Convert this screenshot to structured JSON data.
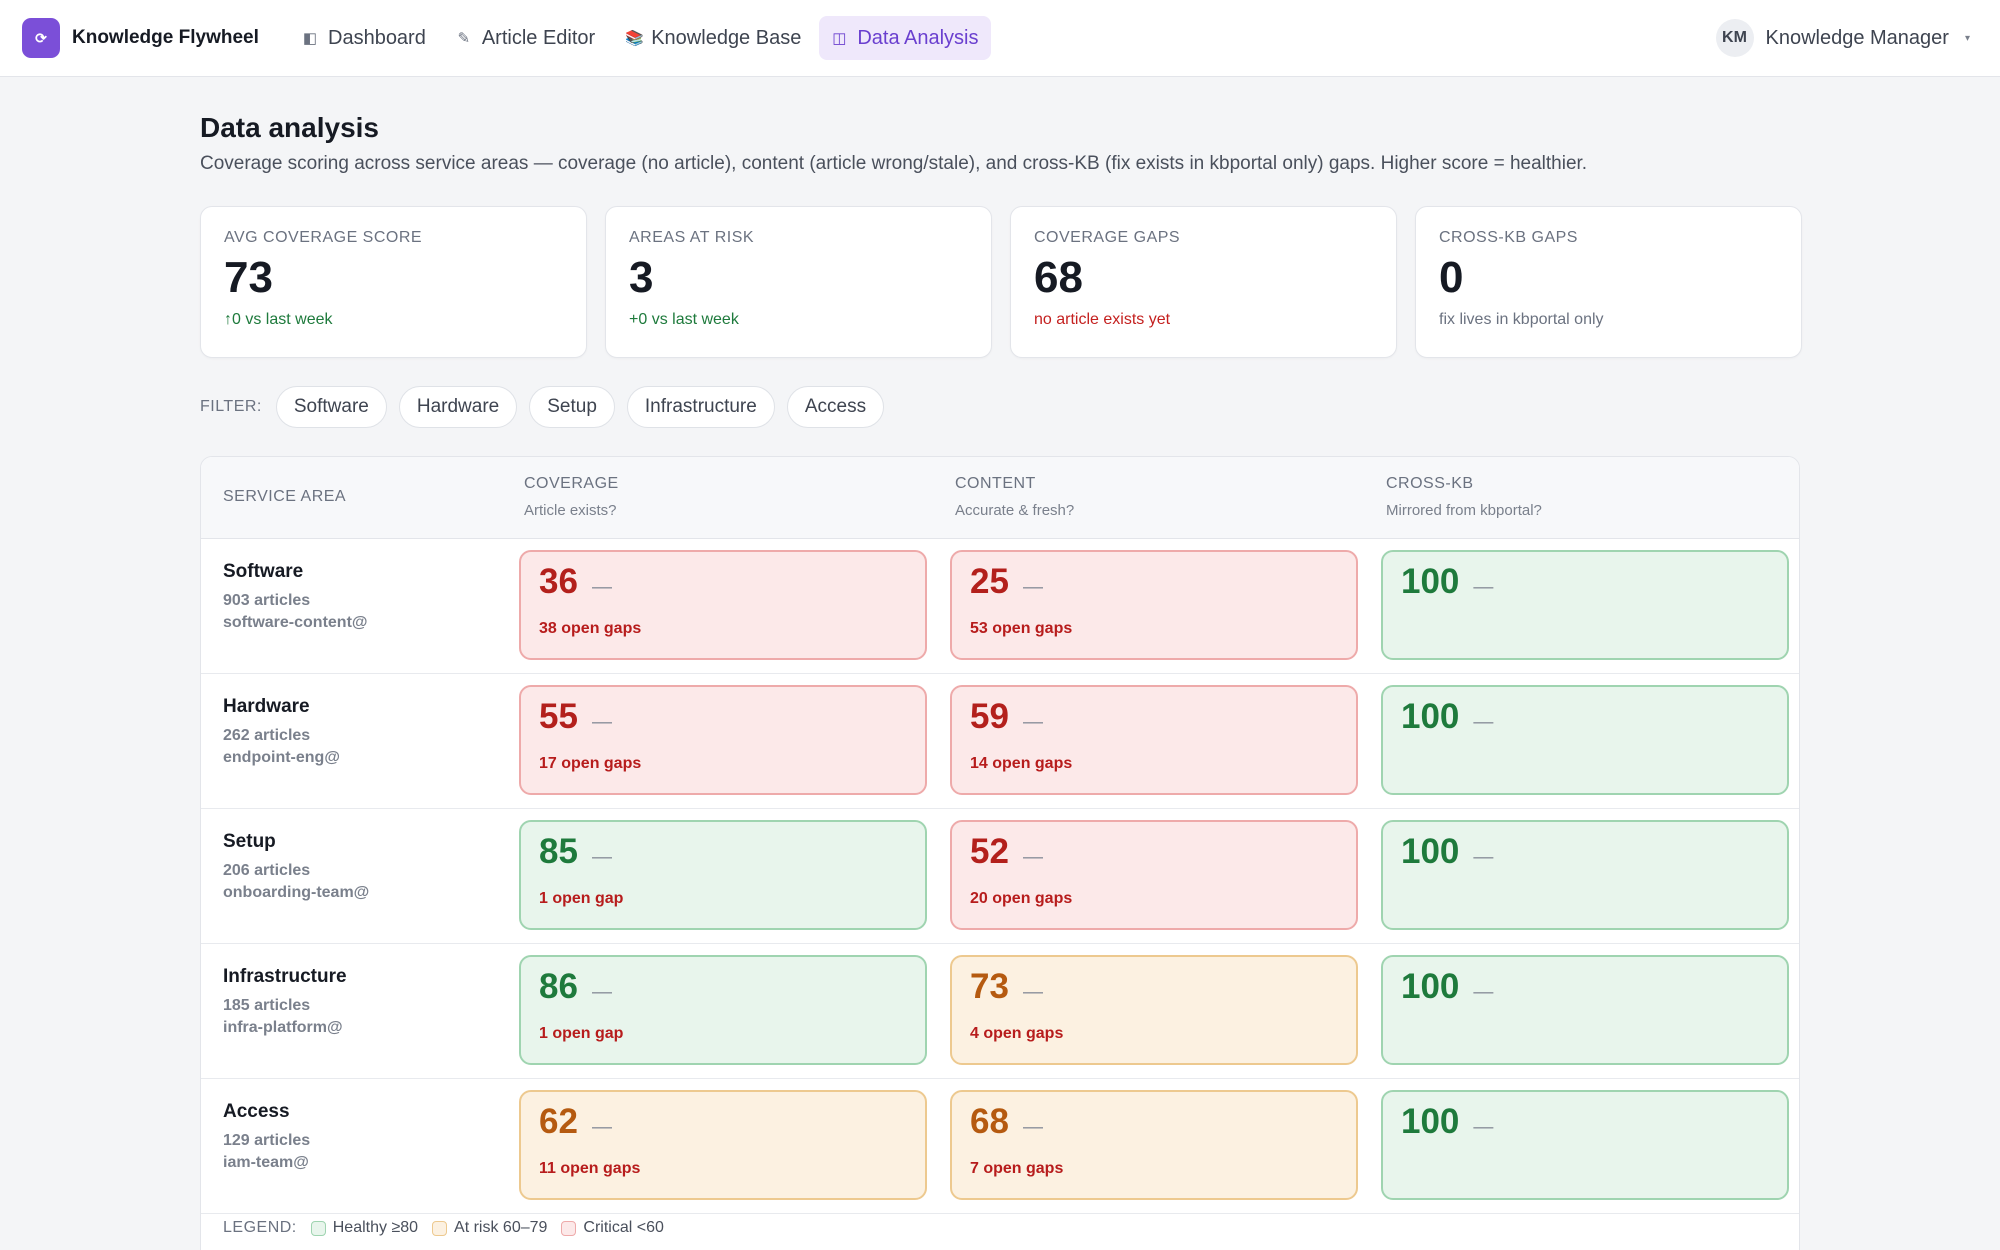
{
  "app": {
    "logo_icon": "refresh-cycle-icon",
    "logo_glyph": "⟳",
    "name": "Knowledge Flywheel",
    "brand_color": "#7b4fd8"
  },
  "nav": [
    {
      "label": "Dashboard",
      "icon": "dashboard-icon",
      "glyph": "◧",
      "active": false
    },
    {
      "label": "Article Editor",
      "icon": "pencil-icon",
      "glyph": "✎",
      "active": false
    },
    {
      "label": "Knowledge Base",
      "icon": "books-icon",
      "glyph": "📚",
      "active": false
    },
    {
      "label": "Data Analysis",
      "icon": "columns-icon",
      "glyph": "◫",
      "active": true
    }
  ],
  "user": {
    "initials": "KM",
    "name": "Knowledge Manager",
    "caret": "▾"
  },
  "page": {
    "title": "Data analysis",
    "subtitle": "Coverage scoring across service areas — coverage (no article), content (article wrong/stale), and cross-KB (fix exists in kbportal only) gaps. Higher score = healthier."
  },
  "stats": [
    {
      "label": "AVG COVERAGE SCORE",
      "value": "73",
      "note": "↑0 vs last week",
      "tone": "green"
    },
    {
      "label": "AREAS AT RISK",
      "value": "3",
      "note": "+0 vs last week",
      "tone": "green"
    },
    {
      "label": "COVERAGE GAPS",
      "value": "68",
      "note": "no article exists yet",
      "tone": "red"
    },
    {
      "label": "CROSS-KB GAPS",
      "value": "0",
      "note": "fix lives in kbportal only",
      "tone": "muted"
    }
  ],
  "filter": {
    "label": "FILTER:",
    "chips": [
      "Software",
      "Hardware",
      "Setup",
      "Infrastructure",
      "Access"
    ]
  },
  "table": {
    "headers": {
      "area": "SERVICE AREA",
      "coverage": {
        "title": "COVERAGE",
        "sub": "Article exists?"
      },
      "content": {
        "title": "CONTENT",
        "sub": "Accurate & fresh?"
      },
      "crosskb": {
        "title": "CROSS-KB",
        "sub": "Mirrored from kbportal?"
      }
    },
    "rows": [
      {
        "name": "Software",
        "articles": "903 articles",
        "owner": "software-content@",
        "coverage": {
          "score": "36",
          "trend": "—",
          "gaps": "38 open gaps",
          "status": "red"
        },
        "content": {
          "score": "25",
          "trend": "—",
          "gaps": "53 open gaps",
          "status": "red"
        },
        "crosskb": {
          "score": "100",
          "trend": "—",
          "gaps": "",
          "status": "green"
        }
      },
      {
        "name": "Hardware",
        "articles": "262 articles",
        "owner": "endpoint-eng@",
        "coverage": {
          "score": "55",
          "trend": "—",
          "gaps": "17 open gaps",
          "status": "red"
        },
        "content": {
          "score": "59",
          "trend": "—",
          "gaps": "14 open gaps",
          "status": "red"
        },
        "crosskb": {
          "score": "100",
          "trend": "—",
          "gaps": "",
          "status": "green"
        }
      },
      {
        "name": "Setup",
        "articles": "206 articles",
        "owner": "onboarding-team@",
        "coverage": {
          "score": "85",
          "trend": "—",
          "gaps": "1 open gap",
          "status": "green"
        },
        "content": {
          "score": "52",
          "trend": "—",
          "gaps": "20 open gaps",
          "status": "red"
        },
        "crosskb": {
          "score": "100",
          "trend": "—",
          "gaps": "",
          "status": "green"
        }
      },
      {
        "name": "Infrastructure",
        "articles": "185 articles",
        "owner": "infra-platform@",
        "coverage": {
          "score": "86",
          "trend": "—",
          "gaps": "1 open gap",
          "status": "green"
        },
        "content": {
          "score": "73",
          "trend": "—",
          "gaps": "4 open gaps",
          "status": "amber"
        },
        "crosskb": {
          "score": "100",
          "trend": "—",
          "gaps": "",
          "status": "green"
        }
      },
      {
        "name": "Access",
        "articles": "129 articles",
        "owner": "iam-team@",
        "coverage": {
          "score": "62",
          "trend": "—",
          "gaps": "11 open gaps",
          "status": "amber"
        },
        "content": {
          "score": "68",
          "trend": "—",
          "gaps": "7 open gaps",
          "status": "amber"
        },
        "crosskb": {
          "score": "100",
          "trend": "—",
          "gaps": "",
          "status": "green"
        }
      }
    ]
  },
  "legend": {
    "label": "LEGEND:",
    "items": [
      {
        "label": "Healthy ≥80",
        "status": "green"
      },
      {
        "label": "At risk 60–79",
        "status": "amber"
      },
      {
        "label": "Critical <60",
        "status": "red"
      }
    ]
  },
  "colors": {
    "healthy": "#1e7a3c",
    "at_risk": "#b55a10",
    "critical": "#b3201c",
    "accent": "#6a3fcf"
  }
}
